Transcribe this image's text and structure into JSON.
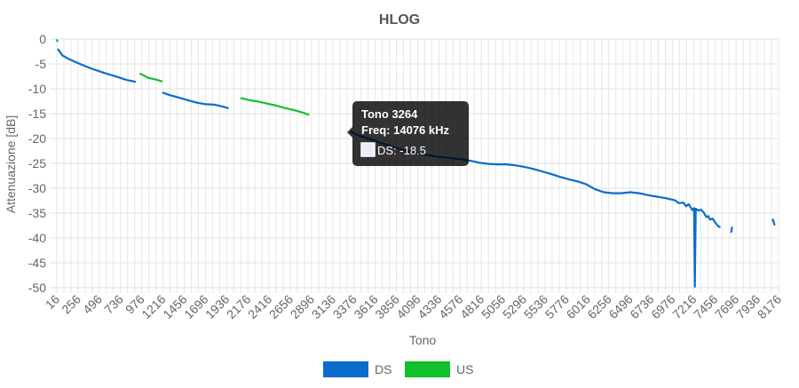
{
  "chart_data": {
    "type": "line",
    "title": "HLOG",
    "xlabel": "Tono",
    "ylabel": "Attenuazione [dB]",
    "xlim": [
      16,
      8176
    ],
    "ylim": [
      -50,
      0
    ],
    "x_ticks": [
      16,
      256,
      496,
      736,
      976,
      1216,
      1456,
      1696,
      1936,
      2176,
      2416,
      2656,
      2896,
      3136,
      3376,
      3616,
      3856,
      4096,
      4336,
      4576,
      4816,
      5056,
      5296,
      5536,
      5776,
      6016,
      6256,
      6496,
      6736,
      6976,
      7216,
      7456,
      7696,
      7936,
      8176
    ],
    "y_ticks": [
      0,
      -5,
      -10,
      -15,
      -20,
      -25,
      -30,
      -35,
      -40,
      -45,
      -50
    ],
    "grid": true,
    "legend_position": "bottom",
    "series": [
      {
        "name": "DS",
        "color": "#0b6ccc",
        "segments": [
          [
            [
              32,
              -2.1
            ],
            [
              80,
              -3.3
            ],
            [
              150,
              -4.0
            ],
            [
              250,
              -4.8
            ],
            [
              400,
              -5.9
            ],
            [
              550,
              -6.8
            ],
            [
              700,
              -7.6
            ],
            [
              800,
              -8.2
            ],
            [
              880,
              -8.5
            ],
            [
              900,
              -8.6
            ]
          ],
          [
            [
              1216,
              -10.8
            ],
            [
              1300,
              -11.3
            ],
            [
              1400,
              -11.8
            ],
            [
              1500,
              -12.3
            ],
            [
              1600,
              -12.8
            ],
            [
              1700,
              -13.1
            ],
            [
              1800,
              -13.2
            ],
            [
              1900,
              -13.6
            ],
            [
              1950,
              -13.9
            ]
          ],
          [
            [
              3340,
              -18.6
            ],
            [
              3400,
              -19.2
            ],
            [
              3500,
              -19.8
            ],
            [
              3600,
              -20.4
            ],
            [
              3700,
              -21.0
            ],
            [
              3800,
              -21.6
            ],
            [
              3900,
              -22.1
            ],
            [
              4000,
              -22.6
            ],
            [
              4100,
              -23.0
            ],
            [
              4200,
              -23.3
            ],
            [
              4300,
              -23.6
            ],
            [
              4400,
              -23.8
            ],
            [
              4500,
              -24.0
            ],
            [
              4600,
              -24.2
            ],
            [
              4700,
              -24.5
            ],
            [
              4800,
              -24.9
            ],
            [
              4900,
              -25.1
            ],
            [
              5000,
              -25.2
            ],
            [
              5100,
              -25.2
            ],
            [
              5200,
              -25.4
            ],
            [
              5300,
              -25.7
            ],
            [
              5400,
              -26.1
            ],
            [
              5500,
              -26.6
            ],
            [
              5600,
              -27.1
            ],
            [
              5700,
              -27.7
            ],
            [
              5800,
              -28.2
            ],
            [
              5900,
              -28.6
            ],
            [
              6000,
              -29.2
            ],
            [
              6100,
              -30.2
            ],
            [
              6200,
              -30.8
            ],
            [
              6300,
              -31.0
            ],
            [
              6400,
              -31.0
            ],
            [
              6500,
              -30.8
            ],
            [
              6600,
              -31.0
            ],
            [
              6700,
              -31.4
            ],
            [
              6800,
              -31.7
            ],
            [
              6900,
              -32.0
            ],
            [
              7000,
              -32.4
            ],
            [
              7050,
              -33.0
            ],
            [
              7100,
              -32.9
            ],
            [
              7130,
              -33.6
            ],
            [
              7160,
              -33.2
            ],
            [
              7200,
              -34.4
            ],
            [
              7220,
              -34.0
            ],
            [
              7230,
              -49.8
            ],
            [
              7240,
              -34.1
            ],
            [
              7270,
              -34.5
            ],
            [
              7300,
              -34.3
            ],
            [
              7330,
              -34.9
            ],
            [
              7360,
              -35.8
            ],
            [
              7380,
              -35.6
            ],
            [
              7400,
              -36.3
            ],
            [
              7430,
              -36.1
            ],
            [
              7460,
              -36.9
            ],
            [
              7490,
              -37.6
            ],
            [
              7510,
              -37.8
            ]
          ],
          [
            [
              7640,
              -38.8
            ],
            [
              7650,
              -37.9
            ]
          ],
          [
            [
              8110,
              -36.3
            ],
            [
              8130,
              -37.3
            ]
          ]
        ]
      },
      {
        "name": "US",
        "color": "#11c02b",
        "segments": [
          [
            [
              16,
              -0.2
            ],
            [
              24,
              -0.4
            ]
          ],
          [
            [
              960,
              -7.0
            ],
            [
              1000,
              -7.3
            ],
            [
              1050,
              -7.8
            ],
            [
              1100,
              -8.0
            ],
            [
              1150,
              -8.2
            ],
            [
              1200,
              -8.5
            ]
          ],
          [
            [
              2100,
              -11.9
            ],
            [
              2200,
              -12.3
            ],
            [
              2300,
              -12.6
            ],
            [
              2400,
              -13.0
            ],
            [
              2500,
              -13.4
            ],
            [
              2600,
              -13.9
            ],
            [
              2700,
              -14.3
            ],
            [
              2800,
              -14.8
            ],
            [
              2860,
              -15.2
            ]
          ]
        ]
      }
    ],
    "tooltip": {
      "title": "Tono 3264",
      "freq": "Freq: 14076 kHz",
      "value": "DS: -18.5",
      "series": "DS"
    }
  }
}
